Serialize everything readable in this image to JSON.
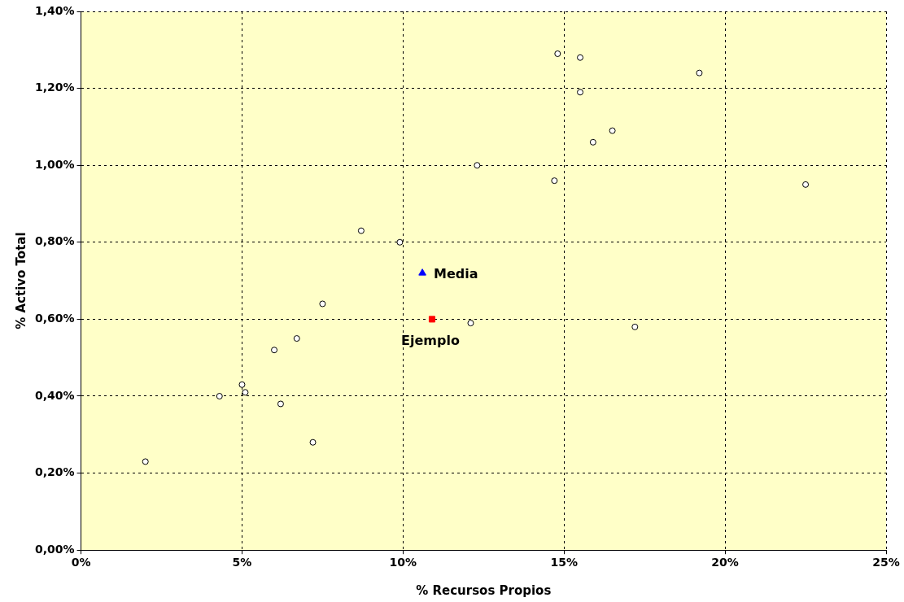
{
  "chart_data": {
    "type": "scatter",
    "xlabel": "% Recursos Propios",
    "ylabel": "% Activo Total",
    "xlim": [
      0,
      25
    ],
    "xticks": [
      {
        "value": 0,
        "label": "0%"
      },
      {
        "value": 5,
        "label": "5%"
      },
      {
        "value": 10,
        "label": "10%"
      },
      {
        "value": 15,
        "label": "15%"
      },
      {
        "value": 20,
        "label": "20%"
      },
      {
        "value": 25,
        "label": "25%"
      }
    ],
    "ylim": [
      0,
      1.4
    ],
    "yticks": [
      {
        "value": 0,
        "label": "0,00%"
      },
      {
        "value": 0.2,
        "label": "0,20%"
      },
      {
        "value": 0.4,
        "label": "0,40%"
      },
      {
        "value": 0.6,
        "label": "0,60%"
      },
      {
        "value": 0.8,
        "label": "0,80%"
      },
      {
        "value": 1,
        "label": "1,00%"
      },
      {
        "value": 1.2,
        "label": "1,20%"
      },
      {
        "value": 1.4,
        "label": "1,40%"
      }
    ],
    "grid": true,
    "legend": false,
    "series": [
      {
        "color": "#000000",
        "marker": "circle",
        "x": [
          2.0,
          4.3,
          5.0,
          5.1,
          6.0,
          6.2,
          6.7,
          7.2,
          7.5,
          8.7,
          9.9,
          12.1,
          12.3,
          14.7,
          14.8,
          15.5,
          15.5,
          15.9,
          16.5,
          17.2,
          19.2,
          22.5
        ],
        "values": [
          0.23,
          0.4,
          0.43,
          0.41,
          0.52,
          0.38,
          0.55,
          0.28,
          0.64,
          0.83,
          0.8,
          0.59,
          1.0,
          0.96,
          1.29,
          1.28,
          1.19,
          1.06,
          1.09,
          0.58,
          1.24,
          0.95
        ]
      },
      {
        "name": "Media",
        "color": "#0000ff",
        "marker": "triangle",
        "x": [
          10.6
        ],
        "values": [
          0.72
        ]
      },
      {
        "name": "Ejemplo",
        "color": "#ff0000",
        "marker": "square",
        "x": [
          10.9
        ],
        "values": [
          0.6
        ]
      }
    ]
  }
}
